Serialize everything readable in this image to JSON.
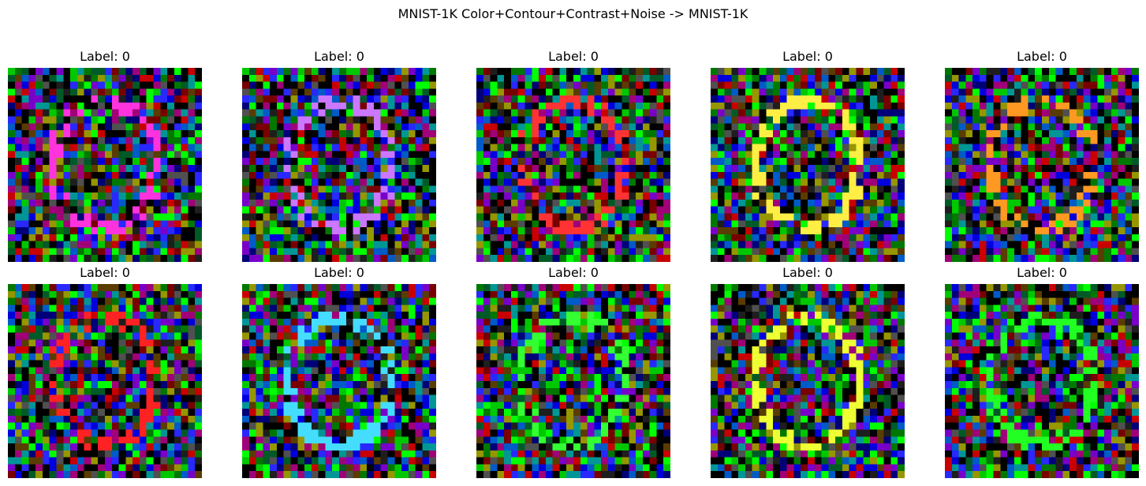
{
  "figure": {
    "title": "MNIST-1K Color+Contour+Contrast+Noise -> MNIST-1K"
  },
  "panels": [
    {
      "label": "Label: 0",
      "digit_color": "#ff33dd",
      "seed": 11
    },
    {
      "label": "Label: 0",
      "digit_color": "#cc77ff",
      "seed": 23
    },
    {
      "label": "Label: 0",
      "digit_color": "#ff3333",
      "seed": 37
    },
    {
      "label": "Label: 0",
      "digit_color": "#ffee44",
      "seed": 41
    },
    {
      "label": "Label: 0",
      "digit_color": "#ff9922",
      "seed": 53
    },
    {
      "label": "Label: 0",
      "digit_color": "#ff2222",
      "seed": 61
    },
    {
      "label": "Label: 0",
      "digit_color": "#44ddff",
      "seed": 73
    },
    {
      "label": "Label: 0",
      "digit_color": "#33ff33",
      "seed": 89
    },
    {
      "label": "Label: 0",
      "digit_color": "#eeff33",
      "seed": 97
    },
    {
      "label": "Label: 0",
      "digit_color": "#22ff22",
      "seed": 101
    }
  ]
}
